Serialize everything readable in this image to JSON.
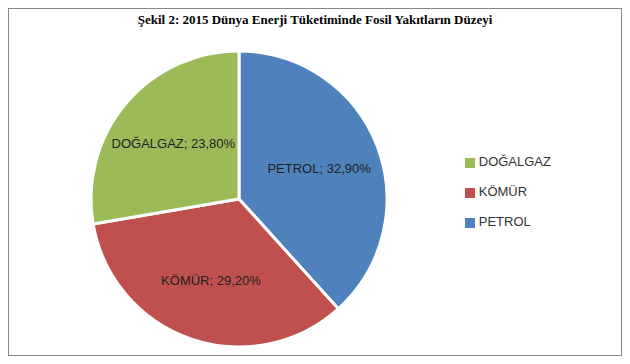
{
  "chart_data": {
    "type": "pie",
    "title": "Şekil 2: 2015 Dünya Enerji Tüketiminde Fosil Yakıtların Düzeyi",
    "categories": [
      "PETROL",
      "KÖMÜR",
      "DOĞALGAZ"
    ],
    "values": [
      32.9,
      29.2,
      23.8
    ],
    "value_labels": [
      "PETROL; 32,90%",
      "KÖMÜR; 29,20%",
      "DOĞALGAZ; 23,80%"
    ],
    "colors": [
      "#4f81bd",
      "#c0504d",
      "#9bbb59"
    ],
    "legend": "right",
    "data_labels": true
  }
}
